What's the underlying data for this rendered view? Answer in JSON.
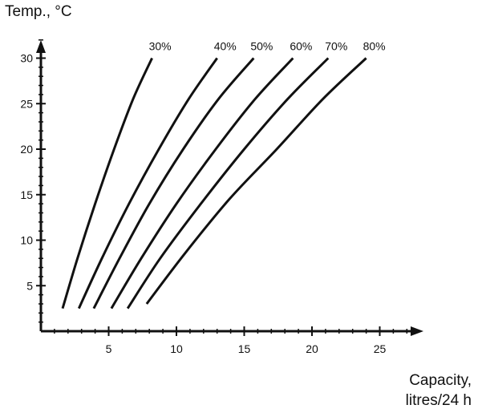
{
  "chart_data": {
    "type": "line",
    "ylabel": "Temp., °C",
    "xlabel_lines": [
      "Capacity,",
      "litres/24 h"
    ],
    "xlim": [
      0,
      27.5
    ],
    "ylim": [
      -1,
      33.5
    ],
    "xticks": [
      5,
      10,
      15,
      20,
      25
    ],
    "yticks": [
      5,
      10,
      15,
      20,
      25,
      30
    ],
    "grid": false,
    "legend": "none",
    "line_color": "#111111",
    "series": [
      {
        "name": "30%",
        "x": [
          1.6,
          2.7,
          4.0,
          5.4,
          6.8,
          8.2
        ],
        "y": [
          2.5,
          8,
          14,
          20,
          25.5,
          30
        ]
      },
      {
        "name": "40%",
        "x": [
          2.8,
          4.5,
          6.5,
          8.7,
          10.9,
          13.0
        ],
        "y": [
          2.5,
          8,
          14,
          20,
          25.5,
          30
        ]
      },
      {
        "name": "50%",
        "x": [
          3.9,
          5.8,
          8.0,
          10.5,
          13.1,
          15.7
        ],
        "y": [
          2.5,
          8,
          14,
          20,
          25.5,
          30
        ]
      },
      {
        "name": "60%",
        "x": [
          5.2,
          7.4,
          10.0,
          12.9,
          15.8,
          18.6
        ],
        "y": [
          2.5,
          8,
          14,
          20,
          25.5,
          30
        ]
      },
      {
        "name": "70%",
        "x": [
          6.4,
          8.8,
          11.8,
          15.0,
          18.2,
          21.2
        ],
        "y": [
          2.5,
          8,
          14,
          20,
          25.5,
          30
        ]
      },
      {
        "name": "80%",
        "x": [
          7.8,
          10.6,
          13.9,
          17.4,
          20.8,
          24.0
        ],
        "y": [
          3,
          8.5,
          14.5,
          20,
          25.5,
          30
        ]
      }
    ]
  }
}
